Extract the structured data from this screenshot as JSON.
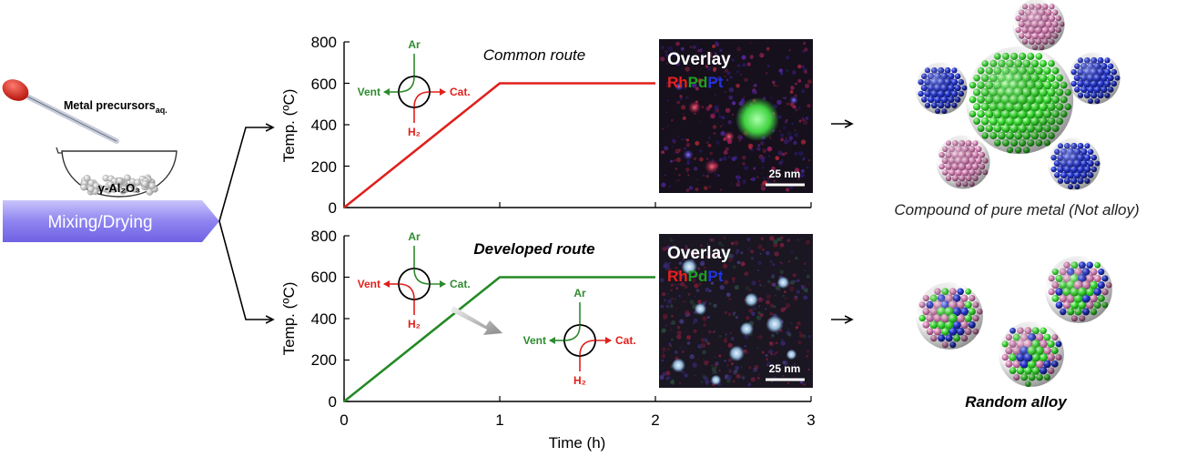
{
  "prep": {
    "precursor_label": "Metal precursors",
    "precursor_sub": "aq.",
    "support_label": "γ-Al₂O₃",
    "step_label": "Mixing/Drying"
  },
  "valve": {
    "top": "Ar",
    "left": "Vent",
    "right": "Cat.",
    "bottom": "H₂",
    "colors": {
      "ar": "#2e8b2e",
      "h2": "#e0201b"
    }
  },
  "plot_common": {
    "route_title": "Common route",
    "ylabel": "Temp. (ºC)",
    "y_ticks": [
      "0",
      "200",
      "400",
      "600",
      "800"
    ]
  },
  "plot_developed": {
    "route_title": "Developed route",
    "ylabel": "Temp. (ºC)",
    "y_ticks": [
      "0",
      "200",
      "400",
      "600",
      "800"
    ],
    "x_ticks": [
      "0",
      "1",
      "2",
      "3"
    ],
    "xlabel": "Time (h)"
  },
  "micrograph_common": {
    "overlay_label": "Overlay",
    "elements": [
      "Rh",
      "Pd",
      "Pt"
    ],
    "element_colors": [
      "#e8201b",
      "#1f9e1f",
      "#2233dd"
    ],
    "scale_bar": "25 nm"
  },
  "micrograph_developed": {
    "overlay_label": "Overlay",
    "elements": [
      "Rh",
      "Pd",
      "Pt"
    ],
    "element_colors": [
      "#e8201b",
      "#1f9e1f",
      "#2233dd"
    ],
    "scale_bar": "25 nm"
  },
  "result_common": {
    "caption": "Compound of pure metal (Not alloy)"
  },
  "result_developed": {
    "caption": "Random alloy"
  },
  "chart_data": [
    {
      "type": "line",
      "title": "Common route",
      "ylabel": "Temp. (ºC)",
      "xlim": [
        0,
        3
      ],
      "ylim": [
        0,
        800
      ],
      "series": [
        {
          "color": "#e0201b",
          "x": [
            0,
            1,
            2
          ],
          "y": [
            0,
            600,
            600
          ]
        }
      ]
    },
    {
      "type": "line",
      "title": "Developed route",
      "xlabel": "Time (h)",
      "ylabel": "Temp. (ºC)",
      "xlim": [
        0,
        3
      ],
      "ylim": [
        0,
        800
      ],
      "series": [
        {
          "color": "#238a23",
          "x": [
            0,
            1,
            2
          ],
          "y": [
            0,
            600,
            600
          ]
        }
      ]
    }
  ]
}
